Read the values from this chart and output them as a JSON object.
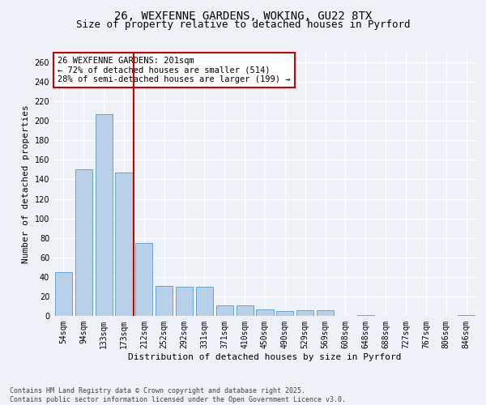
{
  "title1": "26, WEXFENNE GARDENS, WOKING, GU22 8TX",
  "title2": "Size of property relative to detached houses in Pyrford",
  "xlabel": "Distribution of detached houses by size in Pyrford",
  "ylabel": "Number of detached properties",
  "bar_labels": [
    "54sqm",
    "94sqm",
    "133sqm",
    "173sqm",
    "212sqm",
    "252sqm",
    "292sqm",
    "331sqm",
    "371sqm",
    "410sqm",
    "450sqm",
    "490sqm",
    "529sqm",
    "569sqm",
    "608sqm",
    "648sqm",
    "688sqm",
    "727sqm",
    "767sqm",
    "806sqm",
    "846sqm"
  ],
  "bar_values": [
    45,
    150,
    207,
    147,
    75,
    31,
    30,
    30,
    11,
    11,
    7,
    5,
    6,
    6,
    0,
    1,
    0,
    0,
    0,
    0,
    1
  ],
  "bar_color": "#b8d0e8",
  "bar_edge_color": "#5a9ac8",
  "vline_x": 3.5,
  "vline_color": "#cc0000",
  "annotation_text": "26 WEXFENNE GARDENS: 201sqm\n← 72% of detached houses are smaller (514)\n28% of semi-detached houses are larger (199) →",
  "annotation_box_color": "#ffffff",
  "annotation_box_edge": "#cc0000",
  "ylim": [
    0,
    270
  ],
  "yticks": [
    0,
    20,
    40,
    60,
    80,
    100,
    120,
    140,
    160,
    180,
    200,
    220,
    240,
    260
  ],
  "footnote": "Contains HM Land Registry data © Crown copyright and database right 2025.\nContains public sector information licensed under the Open Government Licence v3.0.",
  "bg_color": "#eef2f7",
  "grid_color": "#ffffff",
  "title_fontsize": 10,
  "subtitle_fontsize": 9,
  "axis_label_fontsize": 8,
  "tick_fontsize": 7,
  "annotation_fontsize": 7.5
}
